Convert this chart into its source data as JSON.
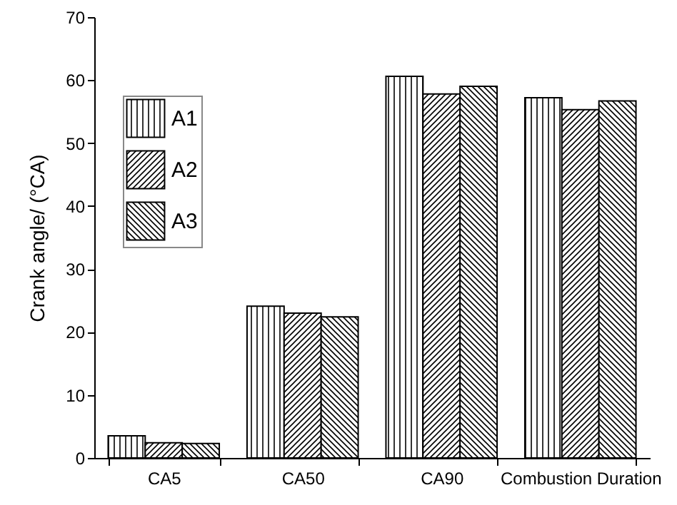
{
  "chart_data": {
    "type": "bar",
    "ylabel": "Crank angle/ (°CA)",
    "categories": [
      "CA5",
      "CA50",
      "CA90",
      "Combustion Duration"
    ],
    "series": [
      {
        "name": "A1",
        "color": "#000000",
        "values": [
          3.5,
          24.1,
          60.6,
          57.2
        ]
      },
      {
        "name": "A2",
        "color": "#000000",
        "values": [
          2.4,
          23.0,
          57.8,
          55.3
        ]
      },
      {
        "name": "A3",
        "color": "#000000",
        "values": [
          2.3,
          22.4,
          59.0,
          56.7
        ]
      }
    ],
    "ylim": [
      0,
      70
    ],
    "yticks": [
      0,
      10,
      20,
      30,
      40,
      50,
      60,
      70
    ],
    "grid": false,
    "legend": "top left"
  }
}
